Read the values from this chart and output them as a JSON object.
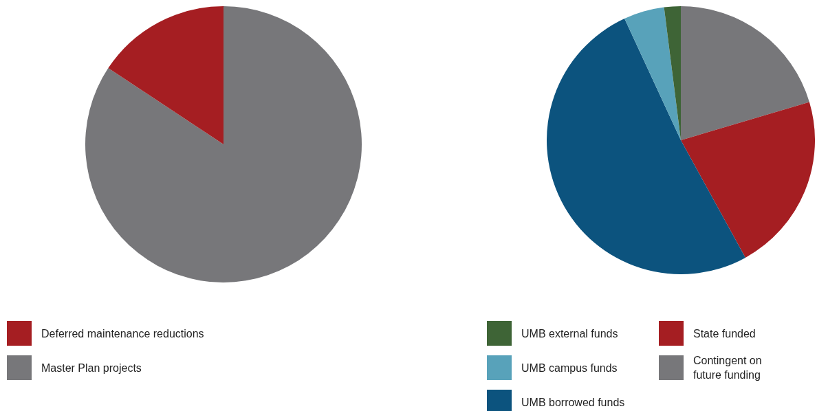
{
  "chart_data": [
    {
      "type": "pie",
      "categories": [
        "Deferred maintenance reductions",
        "Master Plan projects"
      ],
      "values": [
        15.7,
        84.3
      ],
      "colors": [
        "#a51e22",
        "#77777a"
      ],
      "legend": "bottom"
    },
    {
      "type": "pie",
      "categories": [
        "UMB external funds",
        "UMB campus funds",
        "UMB borrowed funds",
        "State funded",
        "Contingent on future funding"
      ],
      "values": [
        2.0,
        4.9,
        51.1,
        21.6,
        20.4
      ],
      "colors": [
        "#3e6436",
        "#58a2ba",
        "#0c537e",
        "#a51e22",
        "#77777a"
      ],
      "legend": "bottom"
    }
  ]
}
